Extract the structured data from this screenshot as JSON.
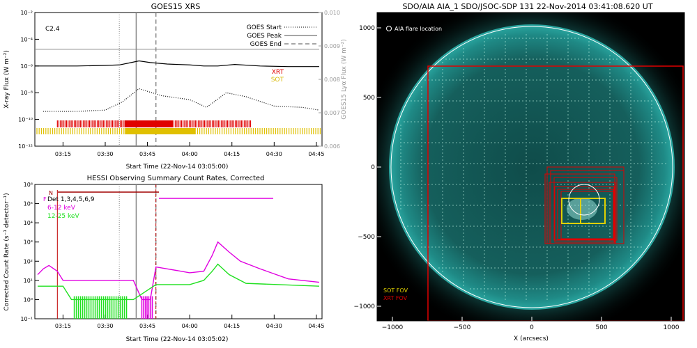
{
  "goes_panel": {
    "title": "GOES15 XRS",
    "xlabel": "Start Time (22-Nov-14 03:05:00)",
    "ylabel_left": "X-ray Flux (W m⁻²)",
    "ylabel_right": "GOES15 Lyα Flux (W m⁻²)",
    "class_label": "C2.4",
    "legend": [
      "GOES Start",
      "GOES Peak",
      "GOES End"
    ],
    "xrt_label": "XRT",
    "sot_label": "SOT",
    "colors": {
      "xrt": "#e00000",
      "sot": "#e0c000",
      "axes": "#000000"
    }
  },
  "hessi_panel": {
    "title": "HESSI Observing Summary Count Rates, Corrected",
    "xlabel": "Start Time (22-Nov-14 03:05:02)",
    "ylabel": "Corrected Count Rate (s⁻¹ detector⁻¹)",
    "legend": [
      {
        "text": "Det 1,3,4,5,6,9",
        "color": "#000000"
      },
      {
        "text": "6-12 keV",
        "color": "#e000e0"
      },
      {
        "text": "12-25 keV",
        "color": "#20e020"
      }
    ],
    "flag_n": "N",
    "flag_f": "F"
  },
  "aia_panel": {
    "title": "SDO/AIA AIA_1 SDO/JSOC-SDP 131 22-Nov-2014 03:41:08.620 UT",
    "flare_legend": "AIA flare location",
    "fov_labels": {
      "sot": "SOT FOV",
      "xrt": "XRT FOV"
    },
    "xlabel": "X (arcsecs)",
    "colors": {
      "sun": "#1a7a78",
      "background": "#000000",
      "xrt": "#e00000",
      "sot": "#e0d000"
    }
  },
  "chart_data": [
    {
      "type": "line",
      "title": "GOES15 XRS",
      "xlabel": "Start Time (22-Nov-14 03:05:00)",
      "ylabel": "X-ray Flux (W m⁻²)",
      "y2label": "GOES15 Lyα Flux (W m⁻²)",
      "scale": "log",
      "xlim": [
        "03:05",
        "04:47"
      ],
      "xticks": [
        "03:15",
        "03:30",
        "03:45",
        "04:00",
        "04:15",
        "04:30",
        "04:45"
      ],
      "ylim": [
        1e-12,
        0.01
      ],
      "yticks": [
        "10⁻¹²",
        "10⁻¹⁰",
        "10⁻⁸",
        "10⁻⁶",
        "10⁻⁴",
        "10⁻²"
      ],
      "y2lim": [
        0.006,
        0.01
      ],
      "y2ticks": [
        "0.006",
        "0.007",
        "0.008",
        "0.009",
        "0.010"
      ],
      "vlines": {
        "start": "03:35",
        "peak": "03:41",
        "end": "03:48"
      },
      "series": [
        {
          "name": "",
          "color": "#000000",
          "x": [
            "03:05",
            "03:20",
            "03:30",
            "03:35",
            "03:38",
            "03:42",
            "03:46",
            "03:52",
            "04:00",
            "04:05",
            "04:10",
            "04:16",
            "04:25",
            "04:35",
            "04:46"
          ],
          "y": [
            1e-06,
            1e-06,
            1.1e-06,
            1.2e-06,
            1.6e-06,
            2.4e-06,
            1.8e-06,
            1.4e-06,
            1.2e-06,
            1e-06,
            1e-06,
            1.3e-06,
            1e-06,
            9e-07,
            9e-07
          ]
        },
        {
          "name": "",
          "color": "#000000",
          "style": "dotted",
          "x": [
            "03:08",
            "03:20",
            "03:30",
            "03:36",
            "03:42",
            "03:50",
            "04:00",
            "04:06",
            "04:13",
            "04:20",
            "04:30",
            "04:40",
            "04:46"
          ],
          "y": [
            4e-10,
            4e-10,
            5e-10,
            2e-09,
            2e-08,
            6e-09,
            3e-09,
            8e-10,
            1e-08,
            5e-09,
            1e-09,
            8e-10,
            5e-10
          ]
        },
        {
          "name": "",
          "color": "#888888",
          "axis": "y2",
          "x": [
            "03:05",
            "04:46"
          ],
          "y": [
            0.0089,
            0.0089
          ]
        }
      ]
    },
    {
      "type": "line",
      "title": "HESSI Observing Summary Count Rates, Corrected",
      "xlabel": "Start Time (22-Nov-14 03:05:02)",
      "ylabel": "Corrected Count Rate (s⁻¹ detector⁻¹)",
      "scale": "log",
      "xlim": [
        "03:05",
        "04:47"
      ],
      "xticks": [
        "03:15",
        "03:30",
        "03:45",
        "04:00",
        "04:15",
        "04:30",
        "04:45"
      ],
      "ylim": [
        0.1,
        1000000.0
      ],
      "yticks": [
        "10⁻¹",
        "10⁰",
        "10¹",
        "10²",
        "10³",
        "10⁴",
        "10⁵",
        "10⁶"
      ],
      "series": [
        {
          "name": "6-12 keV",
          "color": "#e000e0",
          "x": [
            "03:06",
            "03:08",
            "03:10",
            "03:13",
            "03:15",
            "03:20",
            "03:25",
            "03:30",
            "03:35",
            "03:40",
            "03:43",
            "03:46",
            "03:48",
            "03:52",
            "04:00",
            "04:05",
            "04:08",
            "04:10",
            "04:14",
            "04:18",
            "04:25",
            "04:35",
            "04:46"
          ],
          "y": [
            20,
            40,
            60,
            30,
            10,
            10,
            10,
            10,
            10,
            10,
            1,
            1,
            50,
            40,
            25,
            30,
            200,
            1000,
            300,
            100,
            40,
            12,
            8
          ]
        },
        {
          "name": "12-25 keV",
          "color": "#20e020",
          "x": [
            "03:06",
            "03:15",
            "03:18",
            "03:30",
            "03:40",
            "03:48",
            "04:00",
            "04:05",
            "04:08",
            "04:10",
            "04:14",
            "04:20",
            "04:46"
          ],
          "y": [
            5,
            5,
            1,
            1,
            1,
            6,
            6,
            10,
            30,
            70,
            20,
            7,
            5
          ]
        }
      ]
    }
  ]
}
